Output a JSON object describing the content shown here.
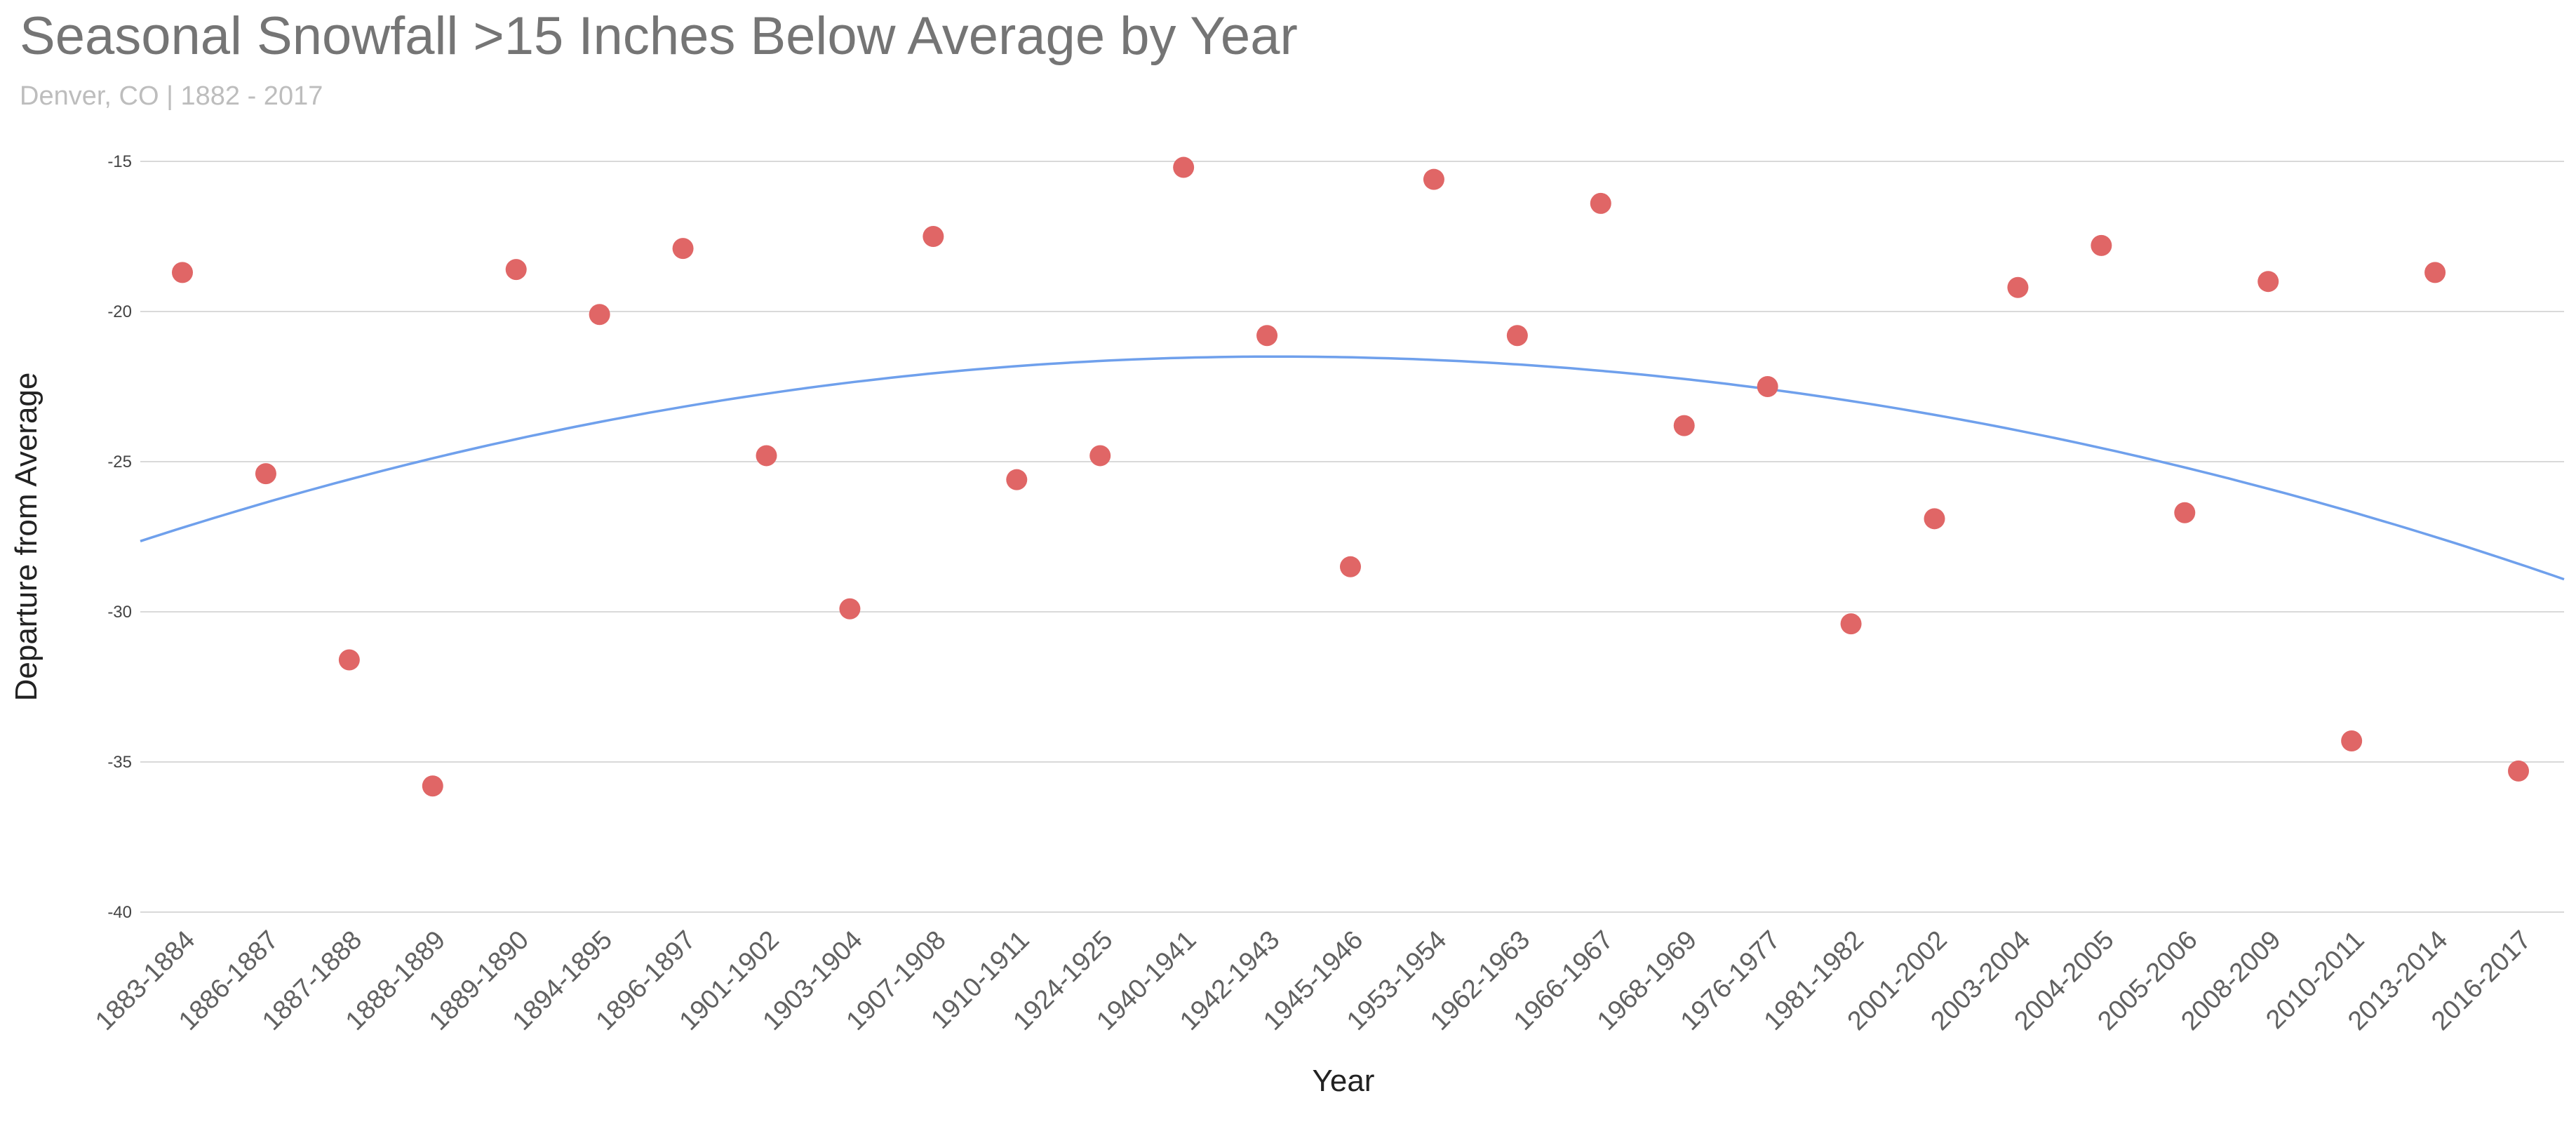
{
  "header": {
    "title": "Seasonal Snowfall >15 Inches Below Average by Year",
    "subtitle": "Denver, CO | 1882 - 2017"
  },
  "chart_data": {
    "type": "scatter",
    "title": "Seasonal Snowfall >15 Inches Below Average by Year",
    "subtitle": "Denver, CO | 1882 - 2017",
    "xlabel": "Year",
    "ylabel": "Departure from Average",
    "ylim": [
      -40,
      -15
    ],
    "yticks": [
      -15,
      -20,
      -25,
      -30,
      -35,
      -40
    ],
    "grid": true,
    "categories": [
      "1883-1884",
      "1886-1887",
      "1887-1888",
      "1888-1889",
      "1889-1890",
      "1894-1895",
      "1896-1897",
      "1901-1902",
      "1903-1904",
      "1907-1908",
      "1910-1911",
      "1924-1925",
      "1940-1941",
      "1942-1943",
      "1945-1946",
      "1953-1954",
      "1962-1963",
      "1966-1967",
      "1968-1969",
      "1976-1977",
      "1981-1982",
      "2001-2002",
      "2003-2004",
      "2004-2005",
      "2005-2006",
      "2008-2009",
      "2010-2011",
      "2013-2014",
      "2016-2017"
    ],
    "series": [
      {
        "values": [
          -18.7,
          -25.4,
          -31.6,
          -35.8,
          -18.6,
          -20.1,
          -17.9,
          -24.8,
          -29.9,
          -17.5,
          -25.6,
          -24.8,
          -15.2,
          -20.8,
          -28.5,
          -15.6,
          -20.8,
          -16.4,
          -23.8,
          -22.5,
          -30.4,
          -26.9,
          -19.2,
          -17.8,
          -26.7,
          -19.0,
          -34.3,
          -18.7,
          -35.3
        ],
        "color": "#e06666"
      }
    ],
    "trendline": {
      "type": "polynomial",
      "degree": 2,
      "color": "#6fa0ec",
      "y_at_first": -27.2,
      "y_at_peak": -21.5,
      "peak_category_position": 13.1,
      "y_at_last": -28.4
    }
  }
}
